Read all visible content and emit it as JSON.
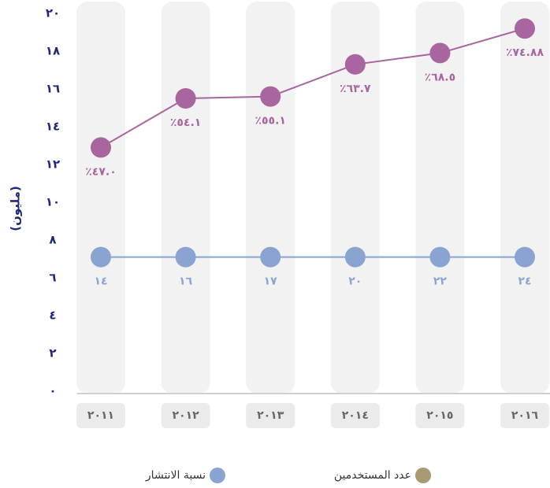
{
  "chart_data": {
    "type": "line",
    "y_label": "(مليون)",
    "categories": [
      "٢٠١١",
      "٢٠١٢",
      "٢٠١٣",
      "٢٠١٤",
      "٢٠١٥",
      "٢٠١٦"
    ],
    "series": [
      {
        "color": "#a8659f",
        "values": [
          12.9,
          15.5,
          15.6,
          17.3,
          17.9,
          19.2
        ],
        "annotations": [
          "٪٤٧.٠",
          "٪٥٤.١",
          "٪٥٥.١",
          "٪٦٣.٧",
          "٪٦٨.٥",
          "٪٧٤.٨٨"
        ]
      },
      {
        "color": "#8aa4d1",
        "values": [
          7.1,
          7.1,
          7.1,
          7.1,
          7.1,
          7.1
        ],
        "annotations": [
          "١٤",
          "١٦",
          "١٧",
          "٢٠",
          "٢٢",
          "٢٤"
        ]
      }
    ],
    "ylim": [
      0,
      20
    ],
    "yticks": [
      {
        "value": 0,
        "label": "٠"
      },
      {
        "value": 2,
        "label": "٢"
      },
      {
        "value": 4,
        "label": "٤"
      },
      {
        "value": 6,
        "label": "٦"
      },
      {
        "value": 8,
        "label": "٨"
      },
      {
        "value": 10,
        "label": "١٠"
      },
      {
        "value": 12,
        "label": "١٢"
      },
      {
        "value": 14,
        "label": "١٤"
      },
      {
        "value": 16,
        "label": "١٦"
      },
      {
        "value": 18,
        "label": "١٨"
      },
      {
        "value": 20,
        "label": "٢٠"
      }
    ],
    "legend": [
      {
        "name": "عدد المستخدمين",
        "color": "#a89a73"
      },
      {
        "name": "نسبة الانتشار",
        "color": "#8aa4d1"
      }
    ]
  }
}
